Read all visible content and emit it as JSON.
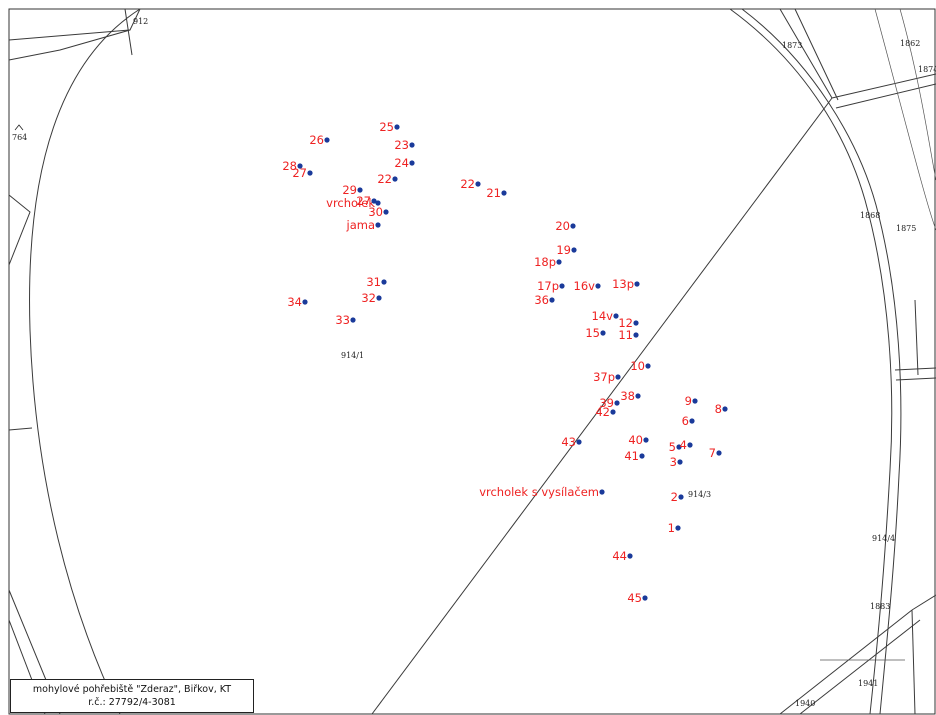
{
  "colors": {
    "point_label": "#ee2222",
    "point_marker": "#1a3a9a",
    "parcel_line": "#3a3a3a"
  },
  "legend": {
    "line1": "mohylové pohřebiště \"Zderaz\", Biřkov, KT",
    "line2": "r.č.: 27792/4-3081"
  },
  "parcel_labels": [
    "912",
    "1873",
    "1862",
    "1874",
    "764",
    "1868",
    "1875",
    "914/1",
    "914/3",
    "914/4",
    "1883",
    "1941",
    "1940"
  ],
  "points": [
    "25",
    "26",
    "23",
    "24",
    "28",
    "27",
    "22",
    "22",
    "21",
    "29",
    "vrcholek",
    "27",
    "30",
    "jama",
    "20",
    "19",
    "18p",
    "31",
    "17p",
    "16v",
    "13p",
    "34",
    "32",
    "36",
    "33",
    "14v",
    "12",
    "15",
    "11",
    "10",
    "37p",
    "9",
    "38",
    "8",
    "39",
    "42",
    "6",
    "40",
    "43",
    "5",
    "4",
    "7",
    "41",
    "3",
    "vrcholek s vysílačem",
    "2",
    "1",
    "44",
    "45"
  ]
}
